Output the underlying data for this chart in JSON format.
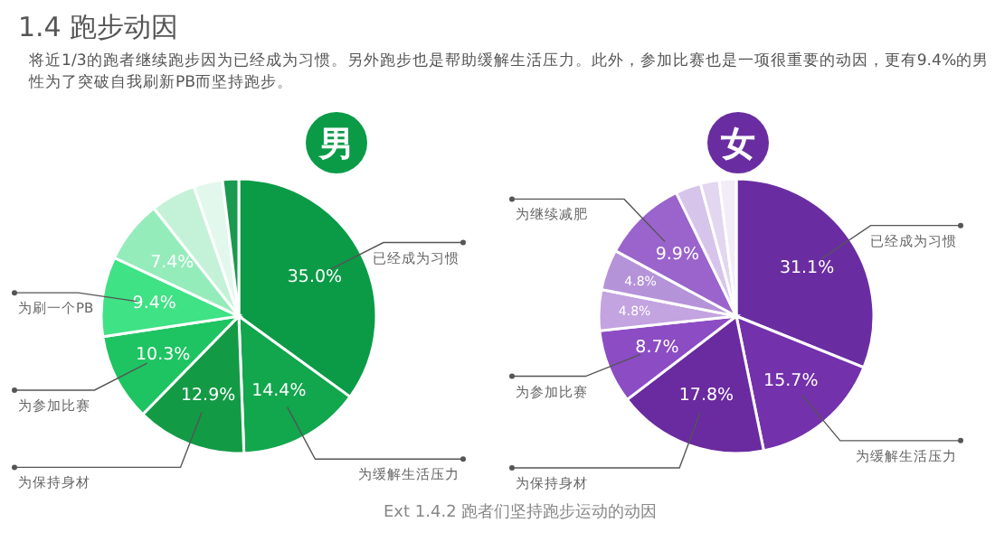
{
  "chart_data": [
    {
      "type": "other",
      "title": "1.4 跑步动因",
      "subtitle": "将近1/3的跑者继续跑步因为已经成为习惯。另外跑步也是帮助缓解生活压力。此外，参加比赛也是一项很重要的动因，更有9.4%的男性为了突破自我刷新PB而坚持跑步。",
      "annotations": [
        "Ext 1.4.2 跑者们坚持跑步运动的动因"
      ]
    },
    {
      "type": "pie",
      "title": "男",
      "categories": [
        "已经成为习惯",
        "为缓解生活压力",
        "为保持身材",
        "为参加比赛",
        "为刷一个PB",
        null,
        null,
        null,
        null
      ],
      "values": [
        35.0,
        14.4,
        12.9,
        10.3,
        9.4,
        7.4,
        5.3,
        3.4,
        1.9
      ],
      "value_labels": [
        "35.0%",
        "14.4%",
        "12.9%",
        "10.3%",
        "9.4%",
        "7.4%",
        null,
        null,
        null
      ],
      "colors": [
        "#0b9b47",
        "#12a64d",
        "#139a45",
        "#1ec462",
        "#3fe285",
        "#95ecbb",
        "#c4f2d8",
        "#e3f8ec",
        "#1a9a4e"
      ]
    },
    {
      "type": "pie",
      "title": "女",
      "categories": [
        "已经成为习惯",
        "为缓解生活压力",
        "为保持身材",
        "为参加比赛",
        null,
        null,
        "为继续减肥",
        null,
        null,
        null
      ],
      "values": [
        31.1,
        15.7,
        17.8,
        8.7,
        4.8,
        4.8,
        9.9,
        3.0,
        2.2,
        2.0
      ],
      "value_labels": [
        "31.1%",
        "15.7%",
        "17.8%",
        "8.7%",
        "4.8%",
        "4.8%",
        "9.9%",
        null,
        null,
        null
      ],
      "colors": [
        "#6a2da1",
        "#7331ab",
        "#6a2aa0",
        "#8c4cc4",
        "#c3a3e0",
        "#b593d8",
        "#9a64cc",
        "#d6c4ea",
        "#e2d6f1",
        "#f1ecf7"
      ]
    }
  ]
}
